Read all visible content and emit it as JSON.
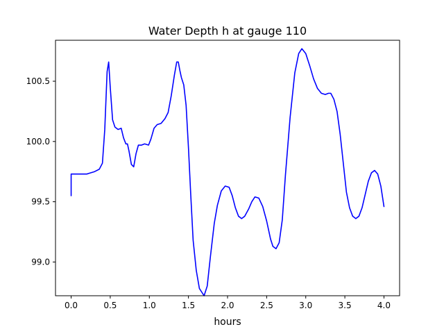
{
  "chart_data": {
    "type": "line",
    "title": "Water Depth h at gauge 110",
    "xlabel": "hours",
    "ylabel": "",
    "xlim": [
      -0.2,
      4.2
    ],
    "ylim": [
      98.72,
      100.84
    ],
    "x_ticks": [
      0.0,
      0.5,
      1.0,
      1.5,
      2.0,
      2.5,
      3.0,
      3.5,
      4.0
    ],
    "x_tick_labels": [
      "0.0",
      "0.5",
      "1.0",
      "1.5",
      "2.0",
      "2.5",
      "3.0",
      "3.5",
      "4.0"
    ],
    "y_ticks": [
      99.0,
      99.5,
      100.0,
      100.5
    ],
    "y_tick_labels": [
      "99.0",
      "99.5",
      "100.0",
      "100.5"
    ],
    "grid": false,
    "legend": "none",
    "series": [
      {
        "color": "#0000ff",
        "points": [
          [
            0.0,
            99.55
          ],
          [
            0.0,
            99.73
          ],
          [
            0.1,
            99.73
          ],
          [
            0.2,
            99.73
          ],
          [
            0.3,
            99.75
          ],
          [
            0.36,
            99.77
          ],
          [
            0.4,
            99.82
          ],
          [
            0.43,
            100.1
          ],
          [
            0.46,
            100.58
          ],
          [
            0.48,
            100.66
          ],
          [
            0.5,
            100.45
          ],
          [
            0.53,
            100.18
          ],
          [
            0.56,
            100.12
          ],
          [
            0.6,
            100.1
          ],
          [
            0.64,
            100.11
          ],
          [
            0.67,
            100.03
          ],
          [
            0.7,
            99.98
          ],
          [
            0.72,
            99.98
          ],
          [
            0.74,
            99.92
          ],
          [
            0.77,
            99.81
          ],
          [
            0.8,
            99.79
          ],
          [
            0.83,
            99.9
          ],
          [
            0.86,
            99.97
          ],
          [
            0.9,
            99.97
          ],
          [
            0.94,
            99.98
          ],
          [
            0.99,
            99.97
          ],
          [
            1.02,
            100.02
          ],
          [
            1.06,
            100.11
          ],
          [
            1.1,
            100.14
          ],
          [
            1.15,
            100.15
          ],
          [
            1.2,
            100.19
          ],
          [
            1.24,
            100.24
          ],
          [
            1.28,
            100.38
          ],
          [
            1.32,
            100.55
          ],
          [
            1.35,
            100.66
          ],
          [
            1.37,
            100.66
          ],
          [
            1.39,
            100.59
          ],
          [
            1.41,
            100.53
          ],
          [
            1.44,
            100.47
          ],
          [
            1.47,
            100.3
          ],
          [
            1.5,
            99.95
          ],
          [
            1.53,
            99.55
          ],
          [
            1.56,
            99.18
          ],
          [
            1.6,
            98.93
          ],
          [
            1.64,
            98.78
          ],
          [
            1.7,
            98.72
          ],
          [
            1.74,
            98.8
          ],
          [
            1.78,
            99.04
          ],
          [
            1.83,
            99.32
          ],
          [
            1.87,
            99.47
          ],
          [
            1.92,
            99.59
          ],
          [
            1.97,
            99.63
          ],
          [
            2.02,
            99.62
          ],
          [
            2.06,
            99.55
          ],
          [
            2.1,
            99.45
          ],
          [
            2.14,
            99.38
          ],
          [
            2.18,
            99.36
          ],
          [
            2.22,
            99.38
          ],
          [
            2.27,
            99.44
          ],
          [
            2.31,
            99.5
          ],
          [
            2.35,
            99.54
          ],
          [
            2.4,
            99.53
          ],
          [
            2.45,
            99.46
          ],
          [
            2.5,
            99.34
          ],
          [
            2.55,
            99.19
          ],
          [
            2.58,
            99.13
          ],
          [
            2.62,
            99.11
          ],
          [
            2.66,
            99.16
          ],
          [
            2.7,
            99.35
          ],
          [
            2.74,
            99.72
          ],
          [
            2.8,
            100.2
          ],
          [
            2.86,
            100.57
          ],
          [
            2.91,
            100.73
          ],
          [
            2.95,
            100.77
          ],
          [
            3.0,
            100.73
          ],
          [
            3.05,
            100.63
          ],
          [
            3.1,
            100.52
          ],
          [
            3.15,
            100.44
          ],
          [
            3.2,
            100.4
          ],
          [
            3.25,
            100.39
          ],
          [
            3.29,
            100.4
          ],
          [
            3.32,
            100.4
          ],
          [
            3.36,
            100.35
          ],
          [
            3.4,
            100.25
          ],
          [
            3.44,
            100.06
          ],
          [
            3.48,
            99.82
          ],
          [
            3.52,
            99.58
          ],
          [
            3.56,
            99.45
          ],
          [
            3.6,
            99.38
          ],
          [
            3.64,
            99.36
          ],
          [
            3.68,
            99.38
          ],
          [
            3.72,
            99.45
          ],
          [
            3.76,
            99.56
          ],
          [
            3.8,
            99.67
          ],
          [
            3.84,
            99.74
          ],
          [
            3.88,
            99.76
          ],
          [
            3.92,
            99.73
          ],
          [
            3.96,
            99.63
          ],
          [
            4.0,
            99.46
          ]
        ]
      }
    ]
  }
}
